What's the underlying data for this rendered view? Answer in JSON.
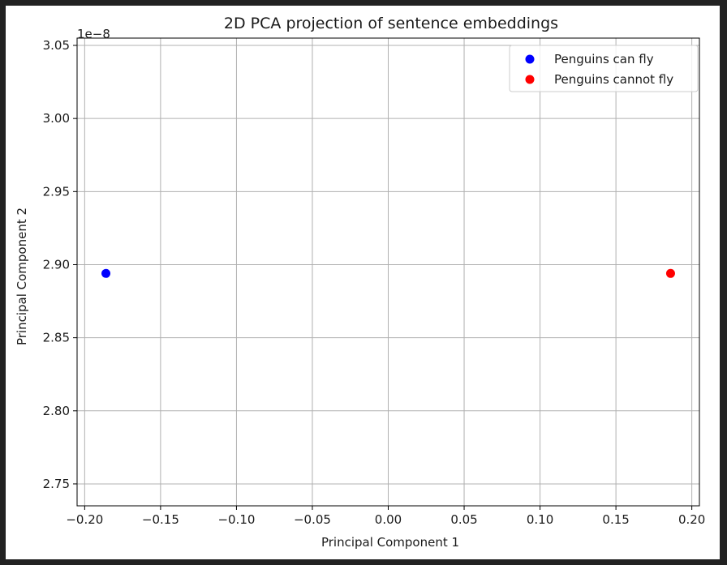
{
  "chart_data": {
    "type": "scatter",
    "title": "2D PCA projection of sentence embeddings",
    "xlabel": "Principal Component 1",
    "ylabel": "Principal Component 2",
    "y_offset_text": "1e−8",
    "xlim": [
      -0.205,
      0.205
    ],
    "ylim": [
      2.735,
      3.055
    ],
    "x_ticks": [
      -0.2,
      -0.15,
      -0.1,
      -0.05,
      0.0,
      0.05,
      0.1,
      0.15,
      0.2
    ],
    "x_tick_labels": [
      "−0.20",
      "−0.15",
      "−0.10",
      "−0.05",
      "0.00",
      "0.05",
      "0.10",
      "0.15",
      "0.20"
    ],
    "y_ticks": [
      2.75,
      2.8,
      2.85,
      2.9,
      2.95,
      3.0,
      3.05
    ],
    "y_tick_labels": [
      "2.75",
      "2.80",
      "2.85",
      "2.90",
      "2.95",
      "3.00",
      "3.05"
    ],
    "grid": true,
    "legend_position": "top-right",
    "series": [
      {
        "name": "Penguins can fly",
        "color": "#0000ff",
        "points": [
          {
            "x": -0.186,
            "y": 2.894
          }
        ]
      },
      {
        "name": "Penguins cannot fly",
        "color": "#ff0000",
        "points": [
          {
            "x": 0.186,
            "y": 2.894
          }
        ]
      }
    ]
  }
}
